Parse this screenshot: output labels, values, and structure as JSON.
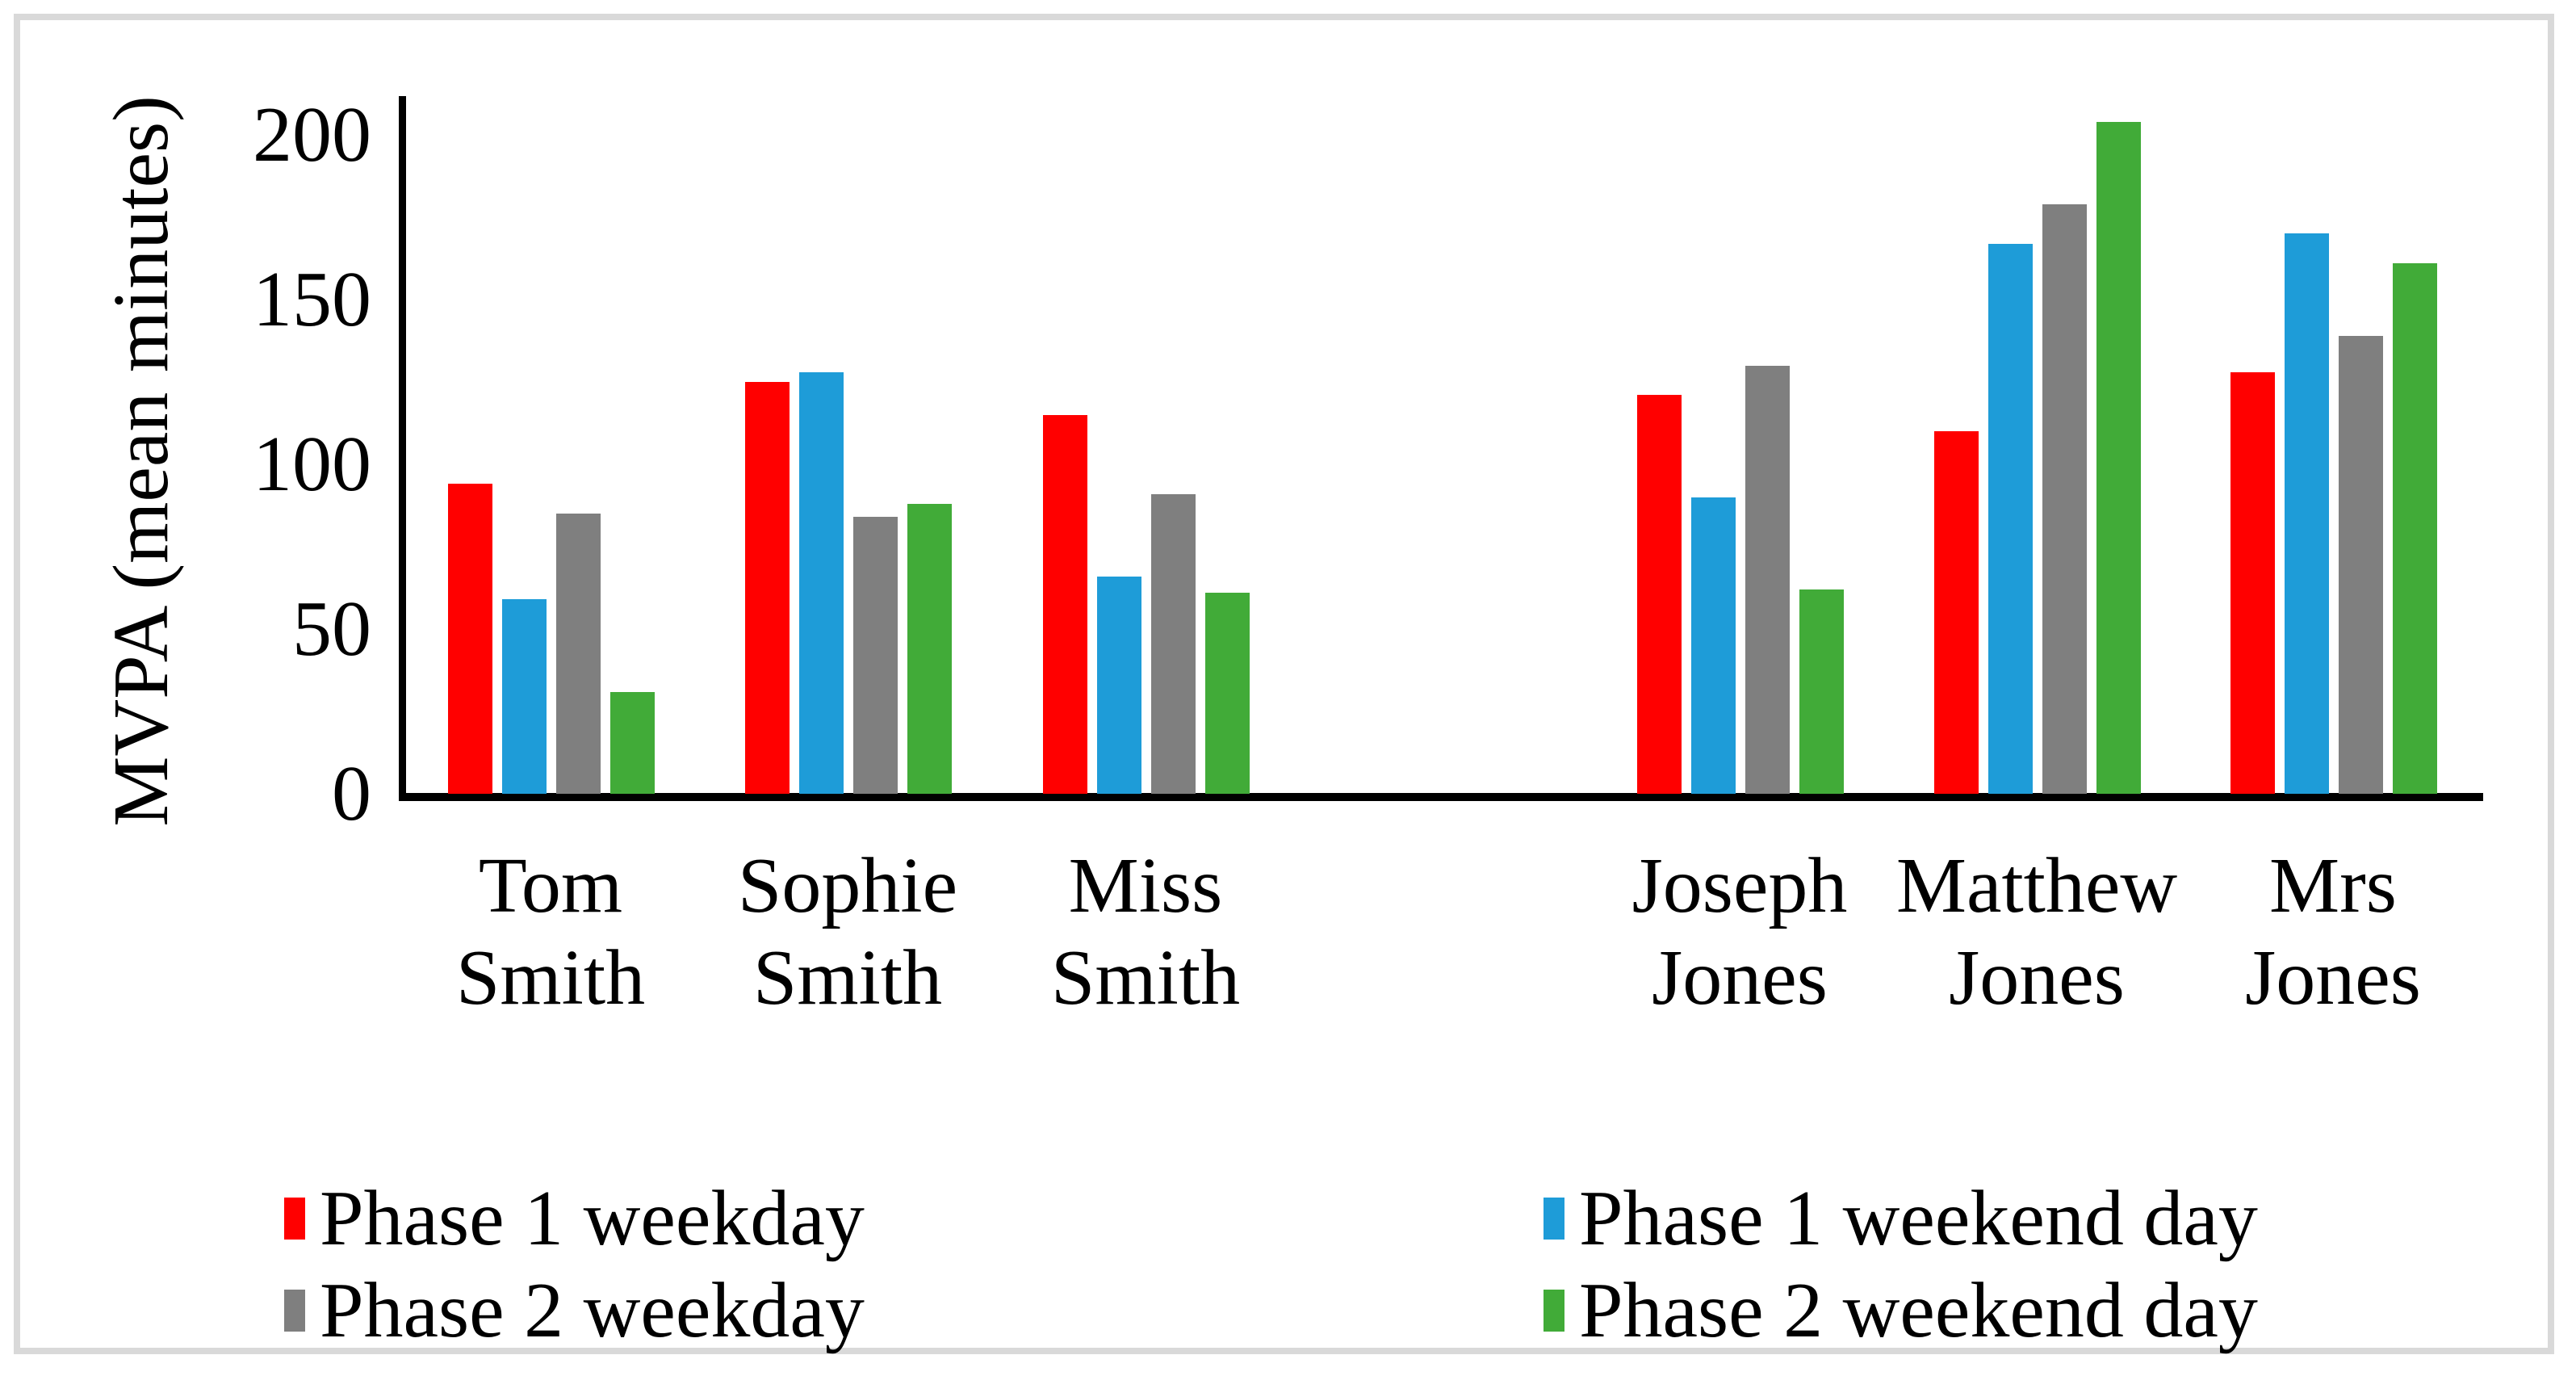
{
  "chart_data": {
    "type": "bar",
    "title": "",
    "ylabel": "MVPA (mean minutes)",
    "xlabel": "",
    "ylim": [
      0,
      200
    ],
    "yticks": [
      0,
      50,
      100,
      150,
      200
    ],
    "grid": false,
    "legend_position": "bottom-two-columns",
    "background": "#FFFFFF",
    "frame_color": "#D9D9D9",
    "axis_color": "#000000",
    "categories": [
      "Tom Smith",
      "Sophie Smith",
      "Miss Smith",
      "Joseph Jones",
      "Matthew Jones",
      "Mrs Jones"
    ],
    "layout_hint": {
      "gap_after_category_index": 2,
      "category_label_lines": 2
    },
    "series": [
      {
        "name": "Phase 1 weekday",
        "color": "#FF0000",
        "values": [
          94,
          125,
          115,
          121,
          110,
          128
        ]
      },
      {
        "name": "Phase 1 weekend day",
        "color": "#1E9CD8",
        "values": [
          59,
          128,
          66,
          90,
          167,
          170
        ]
      },
      {
        "name": "Phase 2 weekday",
        "color": "#7F7F7F",
        "values": [
          85,
          84,
          91,
          130,
          179,
          139
        ]
      },
      {
        "name": "Phase 2 weekend day",
        "color": "#41AB38",
        "values": [
          31,
          88,
          61,
          62,
          204,
          161
        ]
      }
    ],
    "legend_columns": [
      {
        "series_indexes": [
          0,
          2
        ]
      },
      {
        "series_indexes": [
          1,
          3
        ]
      }
    ]
  }
}
